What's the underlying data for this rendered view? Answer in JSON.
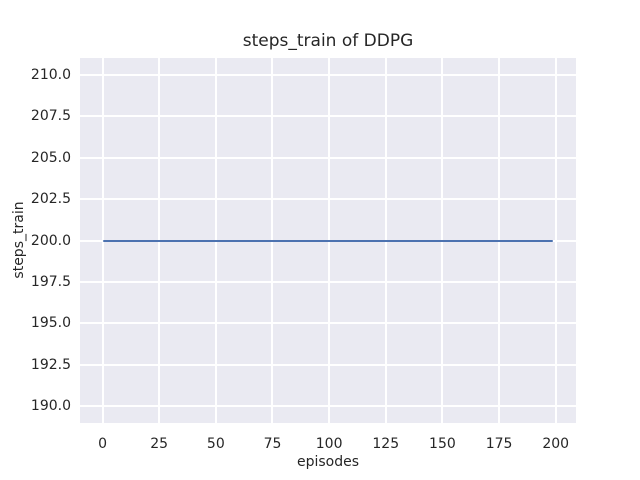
{
  "chart_data": {
    "type": "line",
    "title": "steps_train of DDPG",
    "xlabel": "episodes",
    "ylabel": "steps_train",
    "series": [
      {
        "name": "steps_train",
        "description": "constant horizontal line: steps_train equals 200 for all episodes 0 through 199",
        "x_range": [
          0,
          199
        ],
        "constant_y": 200
      }
    ],
    "xlim": [
      -9.95,
      208.95
    ],
    "ylim": [
      189,
      211
    ],
    "xticks": [
      0,
      25,
      50,
      75,
      100,
      125,
      150,
      175,
      200
    ],
    "xtick_labels": [
      "0",
      "25",
      "50",
      "75",
      "100",
      "125",
      "150",
      "175",
      "200"
    ],
    "yticks": [
      190,
      192.5,
      195,
      197.5,
      200,
      202.5,
      205,
      207.5,
      210
    ],
    "ytick_labels": [
      "190.0",
      "192.5",
      "195.0",
      "197.5",
      "200.0",
      "202.5",
      "205.0",
      "207.5",
      "210.0"
    ],
    "grid": true,
    "legend": false,
    "colors": {
      "line": "#4C72B0",
      "axes_background": "#EAEAF2",
      "grid": "#FFFFFF",
      "text": "#262626",
      "figure_background": "#FFFFFF"
    }
  }
}
